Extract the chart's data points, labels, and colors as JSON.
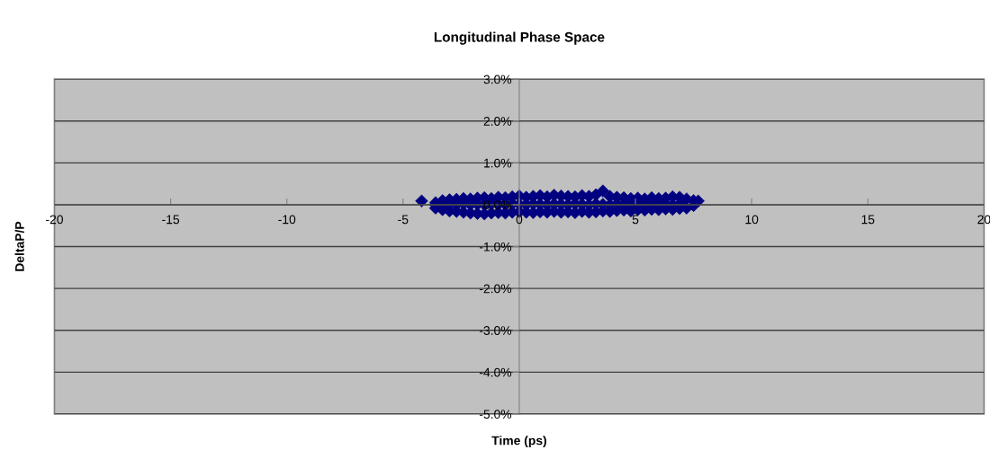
{
  "chart_data": {
    "type": "scatter",
    "title": "Longitudinal Phase Space",
    "xlabel": "Time (ps)",
    "ylabel": "DeltaP/P",
    "xlim": [
      -20,
      20
    ],
    "xticks": [
      -20,
      -15,
      -10,
      -5,
      0,
      5,
      10,
      15,
      20
    ],
    "ylim": [
      -5,
      3
    ],
    "yticks": [
      {
        "value": -5,
        "label": "-5.0%"
      },
      {
        "value": -4,
        "label": "-4.0%"
      },
      {
        "value": -3,
        "label": "-3.0%"
      },
      {
        "value": -2,
        "label": "-2.0%"
      },
      {
        "value": -1,
        "label": "-1.0%"
      },
      {
        "value": 0,
        "label": "0.0%"
      },
      {
        "value": 1,
        "label": "1.0%"
      },
      {
        "value": 2,
        "label": "2.0%"
      },
      {
        "value": 3,
        "label": "3.0%"
      }
    ],
    "grid": "y",
    "marker": "diamond",
    "series": [
      {
        "color": "#000080",
        "x": [
          -4.2,
          -3.6,
          -3.3,
          -3.0,
          -2.7,
          -2.4,
          -2.1,
          -1.8,
          -1.5,
          -1.2,
          -0.9,
          -0.6,
          -0.3,
          0.0,
          0.3,
          0.6,
          0.9,
          1.2,
          1.5,
          1.8,
          2.1,
          2.4,
          2.7,
          3.0,
          3.3,
          3.6,
          3.9,
          4.2,
          4.5,
          4.8,
          5.1,
          5.4,
          5.7,
          6.0,
          6.3,
          6.6,
          6.9,
          7.2,
          7.5,
          -3.6,
          -3.0,
          -2.7,
          -2.4,
          -2.1,
          -1.8,
          -1.5,
          -1.2,
          -0.9,
          -0.6,
          -0.3,
          0.0,
          0.3,
          0.6,
          0.9,
          1.2,
          1.5,
          1.8,
          2.1,
          2.4,
          2.7,
          3.0,
          3.3,
          3.6,
          3.9,
          4.2,
          4.5,
          4.8,
          5.1,
          5.4,
          5.7,
          6.0,
          6.3,
          6.6,
          6.9,
          -3.6,
          -3.3,
          -3.0,
          -2.7,
          -2.4,
          -2.1,
          -1.8,
          -1.5,
          -1.2,
          -0.9,
          -0.6,
          -0.3,
          0.0,
          0.3,
          0.6,
          0.9,
          1.2,
          1.5,
          1.8,
          2.1,
          2.4,
          2.7,
          3.0,
          3.3,
          3.6,
          3.9,
          4.2,
          4.5,
          4.8,
          5.1,
          5.4,
          5.7,
          6.0,
          6.3,
          6.6,
          6.9,
          7.2,
          7.5,
          7.7
        ],
        "values": [
          0.09,
          0.05,
          0.1,
          0.12,
          0.13,
          0.15,
          0.14,
          0.16,
          0.17,
          0.15,
          0.18,
          0.17,
          0.19,
          0.21,
          0.18,
          0.2,
          0.22,
          0.19,
          0.23,
          0.21,
          0.2,
          0.19,
          0.22,
          0.2,
          0.24,
          0.33,
          0.2,
          0.18,
          0.17,
          0.15,
          0.16,
          0.14,
          0.17,
          0.15,
          0.16,
          0.19,
          0.18,
          0.14,
          0.1,
          0.0,
          0.01,
          0.0,
          0.02,
          0.0,
          0.01,
          0.0,
          0.02,
          0.01,
          0.0,
          0.02,
          0.01,
          0.0,
          0.02,
          0.01,
          0.0,
          0.02,
          0.01,
          0.0,
          0.02,
          0.01,
          0.0,
          0.02,
          0.01,
          0.0,
          0.02,
          0.01,
          0.0,
          0.02,
          0.01,
          0.0,
          0.02,
          0.01,
          0.0,
          0.02,
          -0.08,
          -0.12,
          -0.15,
          -0.16,
          -0.18,
          -0.2,
          -0.21,
          -0.22,
          -0.2,
          -0.19,
          -0.2,
          -0.18,
          -0.17,
          -0.18,
          -0.19,
          -0.17,
          -0.18,
          -0.16,
          -0.18,
          -0.17,
          -0.19,
          -0.16,
          -0.18,
          -0.17,
          -0.15,
          -0.16,
          -0.14,
          -0.13,
          -0.15,
          -0.12,
          -0.13,
          -0.11,
          -0.12,
          -0.1,
          -0.11,
          -0.09,
          -0.08,
          -0.02,
          0.09
        ]
      }
    ]
  }
}
